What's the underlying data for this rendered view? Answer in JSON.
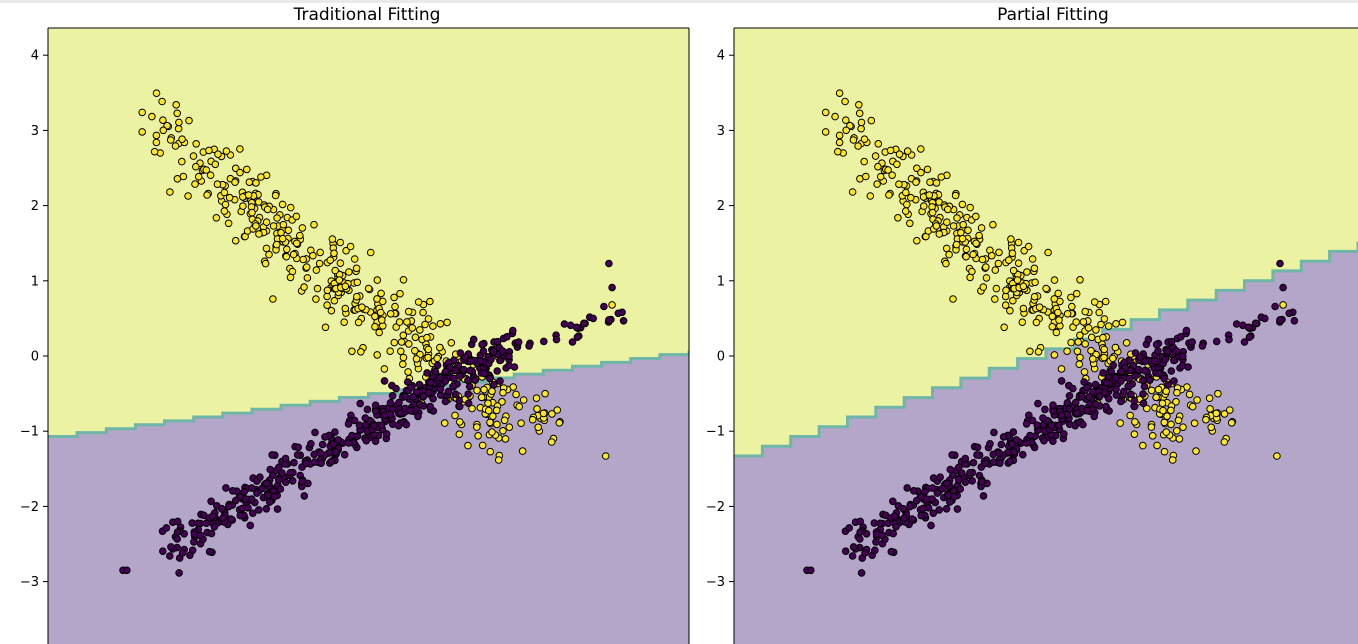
{
  "colors": {
    "region_upper": "#ebf3a2",
    "region_lower": "#b3a6c9",
    "boundary": "#6fb5a8",
    "class_yellow": "#fde725",
    "class_purple": "#440154",
    "point_edge": "#000000",
    "axes": "#000000"
  },
  "chart_data": [
    {
      "type": "scatter",
      "title": "Traditional Fitting",
      "xlabel": "",
      "ylabel": "",
      "ylim": [
        -3.8,
        4.4
      ],
      "yticks": [
        4,
        3,
        2,
        1,
        0,
        -1,
        -2,
        -3
      ],
      "ytick_labels": [
        "4",
        "3",
        "2",
        "1",
        "0",
        "−1",
        "−2",
        "−3"
      ],
      "xticks": [],
      "grid": false,
      "legend": "none",
      "background_regions": [
        "upper (yellow class)",
        "lower (purple class)"
      ],
      "decision_boundary": {
        "y_at_left": -1.07,
        "y_at_right": 0.07,
        "style": "staircase"
      }
    },
    {
      "type": "scatter",
      "title": "Partial Fitting",
      "xlabel": "",
      "ylabel": "",
      "ylim": [
        -3.8,
        4.4
      ],
      "yticks": [
        4,
        3,
        2,
        1,
        0,
        -1,
        -2,
        -3
      ],
      "ytick_labels": [
        "4",
        "3",
        "2",
        "1",
        "0",
        "−1",
        "−2",
        "−3"
      ],
      "xticks": [],
      "grid": false,
      "legend": "none",
      "background_regions": [
        "upper (yellow class)",
        "lower (purple class)"
      ],
      "decision_boundary": {
        "y_at_left": -1.33,
        "y_at_right": 1.52,
        "style": "staircase"
      }
    }
  ]
}
